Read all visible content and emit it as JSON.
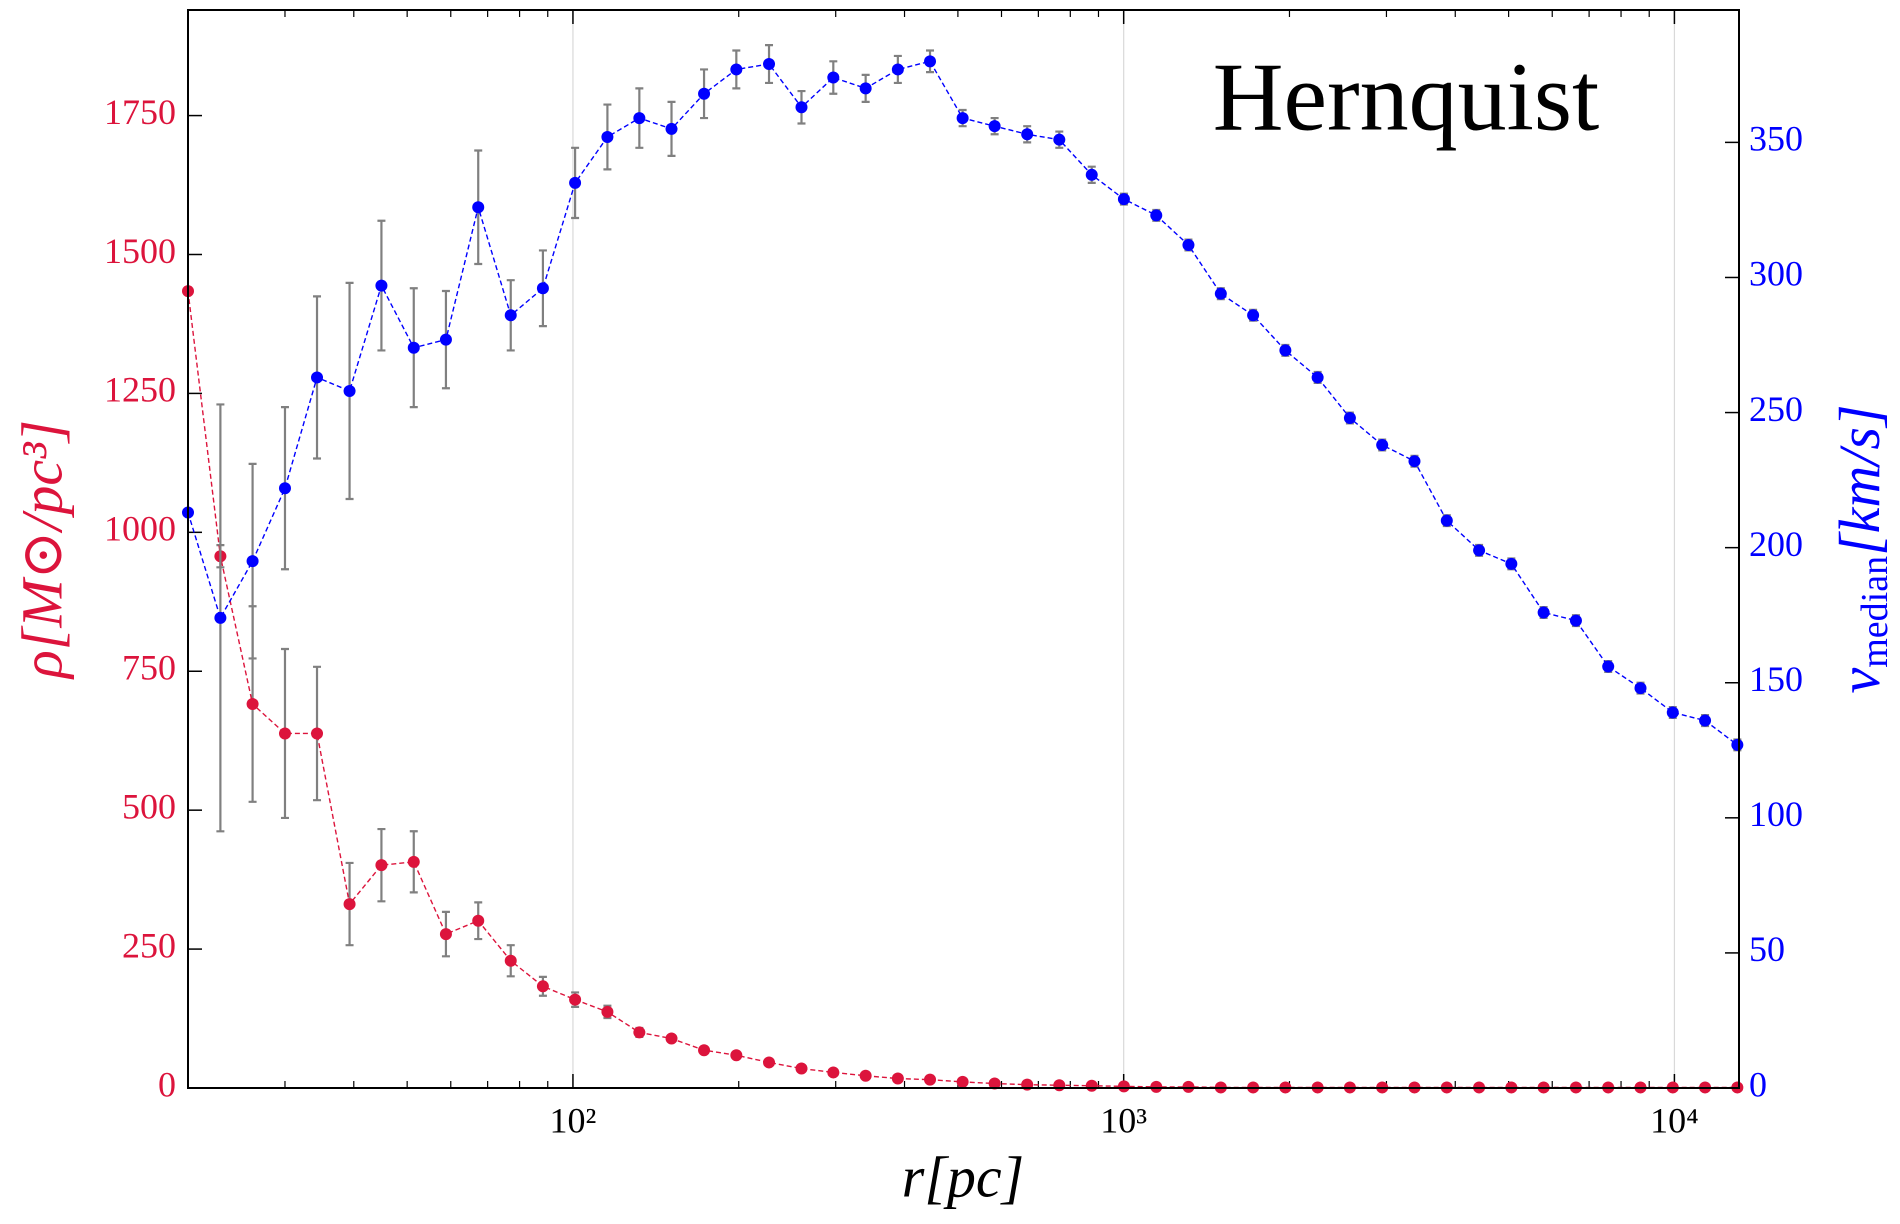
{
  "chart_data": {
    "type": "line",
    "annotation": "Hernquist",
    "xlabel": "r[pc]",
    "ylabel": "ρ[M⊙/pc³]",
    "y2label": [
      "v",
      "median",
      "[km/s]"
    ],
    "xscale": "log",
    "grid": "x",
    "xlim": [
      20,
      13100
    ],
    "xticks": [
      {
        "value": 100,
        "label": "10²"
      },
      {
        "value": 1000,
        "label": "10³"
      },
      {
        "value": 10000,
        "label": "10⁴"
      }
    ],
    "ylim": [
      0,
      1940
    ],
    "yticks": [
      0,
      250,
      500,
      750,
      1000,
      1250,
      1500,
      1750
    ],
    "y2lim": [
      0,
      399
    ],
    "y2ticks": [
      0,
      50,
      100,
      150,
      200,
      250,
      300,
      350
    ],
    "errorbar_color": "#808080",
    "x": [
      20,
      22.9,
      26.2,
      30.0,
      34.3,
      39.3,
      44.9,
      51.4,
      58.8,
      67.3,
      77.1,
      88.2,
      100.9,
      115.5,
      132,
      151,
      173,
      198,
      227,
      260,
      297,
      340,
      389,
      445,
      510,
      583,
      668,
      764,
      875,
      1001,
      1146,
      1311,
      1501,
      1718,
      1966,
      2250,
      2575,
      2947,
      3373,
      3861,
      4419,
      5057,
      5788,
      6625,
      7582,
      8678,
      9932,
      11367,
      13010
    ],
    "series": [
      {
        "name": "ρ",
        "color": "#dc143c",
        "axis": "y",
        "values": [
          1434,
          957,
          691,
          638,
          638,
          331,
          401,
          407,
          277,
          301,
          229,
          183,
          159,
          137,
          100,
          89,
          68,
          59,
          46,
          35,
          28,
          22,
          17,
          15,
          11,
          8,
          6,
          5,
          4,
          3,
          2,
          2,
          1,
          1,
          1,
          1,
          1,
          1,
          1,
          1,
          1,
          1,
          1,
          1,
          1,
          1,
          1,
          1,
          1
        ],
        "errors": [
          0,
          20,
          176,
          152,
          120,
          74,
          65,
          55,
          40,
          33,
          28,
          17,
          13,
          11,
          8,
          6,
          5,
          4,
          3,
          3,
          2,
          2,
          2,
          1,
          1,
          1,
          1,
          1,
          1,
          1,
          1,
          1,
          1,
          1,
          1,
          1,
          1,
          1,
          1,
          1,
          1,
          1,
          1,
          1,
          1,
          1,
          1,
          1,
          1
        ]
      },
      {
        "name": "v_median",
        "color": "#0000ff",
        "axis": "y2",
        "values": [
          213,
          174,
          195,
          222,
          263,
          258,
          297,
          274,
          277,
          326,
          286,
          296,
          335,
          352,
          359,
          355,
          368,
          377,
          379,
          363,
          374,
          370,
          377,
          380,
          359,
          356,
          353,
          351,
          338,
          329,
          323,
          312,
          294,
          286,
          273,
          263,
          248,
          238,
          232,
          210,
          199,
          194,
          176,
          173,
          156,
          148,
          139,
          136,
          127
        ],
        "errors": [
          0,
          79,
          36,
          30,
          30,
          40,
          24,
          22,
          18,
          21,
          13,
          14,
          13,
          12,
          11,
          10,
          9,
          7,
          7,
          6,
          6,
          5,
          5,
          4,
          3,
          3,
          3,
          3,
          3,
          2,
          2,
          2,
          2,
          2,
          2,
          2,
          2,
          2,
          2,
          2,
          2,
          2,
          2,
          2,
          2,
          2,
          2,
          2,
          2
        ]
      }
    ]
  }
}
